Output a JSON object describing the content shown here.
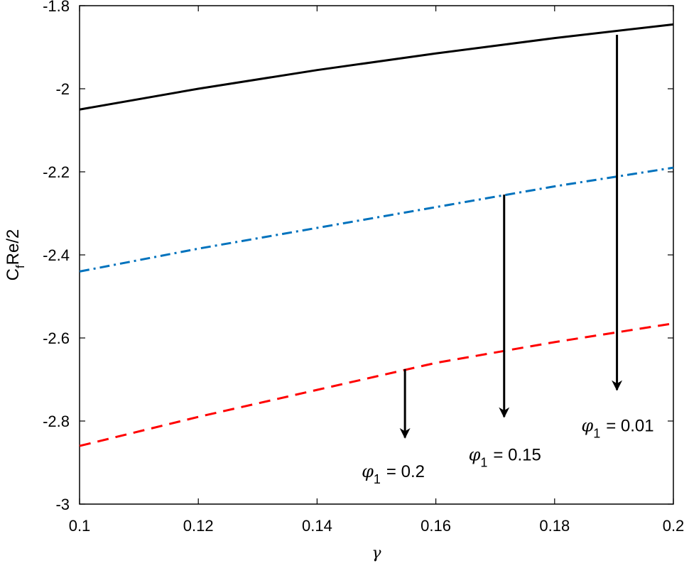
{
  "chart_data": {
    "type": "line",
    "xlabel": "γ",
    "ylabel": "C_fRe/2",
    "xlim": [
      0.1,
      0.2
    ],
    "ylim": [
      -3,
      -1.8
    ],
    "xticks": [
      0.1,
      0.12,
      0.14,
      0.16,
      0.18,
      0.2
    ],
    "xtick_labels": [
      "0.1",
      "0.12",
      "0.14",
      "0.16",
      "0.18",
      "0.2"
    ],
    "yticks": [
      -3,
      -2.8,
      -2.6,
      -2.4,
      -2.2,
      -2,
      -1.8
    ],
    "ytick_labels": [
      "-3",
      "-2.8",
      "-2.6",
      "-2.4",
      "-2.2",
      "-2",
      "-1.8"
    ],
    "grid": false,
    "series": [
      {
        "name": "",
        "color": "#000000",
        "dash": "solid",
        "x": [
          0.1,
          0.12,
          0.14,
          0.16,
          0.18,
          0.2
        ],
        "y": [
          -2.05,
          -2.0,
          -1.955,
          -1.915,
          -1.878,
          -1.845
        ]
      },
      {
        "name": "",
        "color": "#0072BD",
        "dash": "dashdot",
        "x": [
          0.1,
          0.12,
          0.14,
          0.16,
          0.18,
          0.2
        ],
        "y": [
          -2.44,
          -2.385,
          -2.335,
          -2.285,
          -2.235,
          -2.19
        ]
      },
      {
        "name": "",
        "color": "#FF0000",
        "dash": "dashed",
        "x": [
          0.1,
          0.12,
          0.14,
          0.16,
          0.18,
          0.2
        ],
        "y": [
          -2.86,
          -2.79,
          -2.725,
          -2.66,
          -2.61,
          -2.565
        ]
      }
    ],
    "annotations": [
      {
        "symbol": "φ",
        "sub": "1",
        "value": "= 0.2",
        "text_x": 0.1475,
        "text_y": -2.935,
        "arrow_x": 0.1548,
        "arrow_from": -2.675,
        "arrow_to": -2.84
      },
      {
        "symbol": "φ",
        "sub": "1",
        "value": "= 0.15",
        "text_x": 0.1655,
        "text_y": -2.895,
        "arrow_x": 0.1715,
        "arrow_from": -2.255,
        "arrow_to": -2.79
      },
      {
        "symbol": "φ",
        "sub": "1",
        "value": "= 0.01",
        "text_x": 0.1845,
        "text_y": -2.825,
        "arrow_x": 0.1905,
        "arrow_from": -1.87,
        "arrow_to": -2.725
      }
    ]
  }
}
